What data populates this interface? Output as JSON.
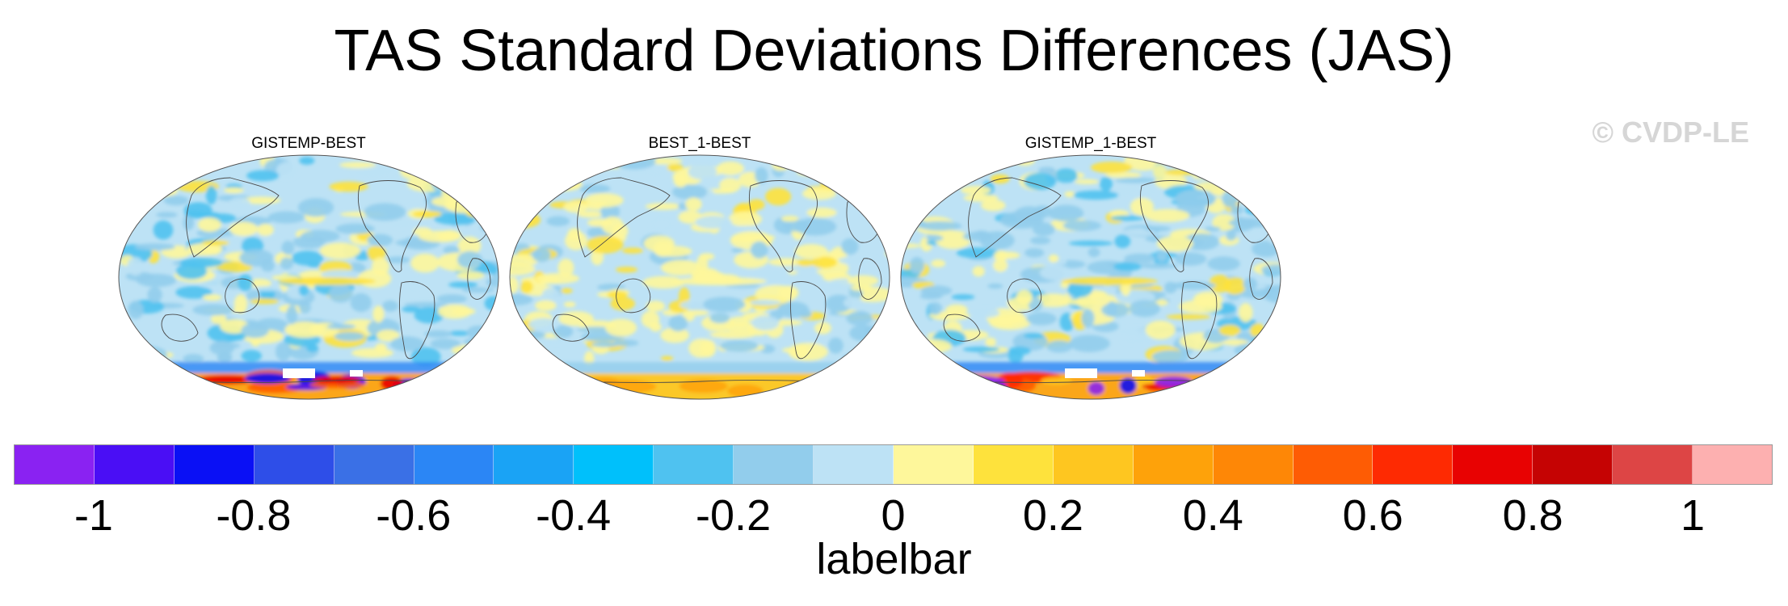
{
  "title": "TAS Standard Deviations Differences (JAS)",
  "watermark": "© CVDP-LE",
  "panels": [
    {
      "title": "GISTEMP-BEST",
      "center": "pacific",
      "antarctic_anomaly": "strong",
      "seed": 11
    },
    {
      "title": "BEST_1-BEST",
      "center": "pacific",
      "antarctic_anomaly": "weak",
      "seed": 23
    },
    {
      "title": "GISTEMP_1-BEST",
      "center": "pacific",
      "antarctic_anomaly": "strong",
      "seed": 37
    }
  ],
  "colorbar": {
    "title": "labelbar",
    "colors": [
      "#8a22f2",
      "#4a0ef5",
      "#0a10f5",
      "#2e4ee8",
      "#3a70e6",
      "#2b86f5",
      "#1aa3f5",
      "#00c0fb",
      "#4fc2f0",
      "#92cdec",
      "#bde2f5",
      "#fef79b",
      "#fee23c",
      "#fec620",
      "#fea20a",
      "#fe8706",
      "#fe5c04",
      "#fe2a02",
      "#e80202",
      "#c50303",
      "#dd4545",
      "#fdb0b0"
    ],
    "boundaries": [
      -1.1,
      -1,
      -0.9,
      -0.8,
      -0.7,
      -0.6,
      -0.5,
      -0.4,
      -0.3,
      -0.2,
      -0.1,
      0,
      0.1,
      0.2,
      0.3,
      0.4,
      0.5,
      0.6,
      0.7,
      0.8,
      0.9,
      1,
      1.1
    ],
    "tick_labels": [
      "-1",
      "-0.8",
      "-0.6",
      "-0.4",
      "-0.2",
      "0",
      "0.2",
      "0.4",
      "0.6",
      "0.8",
      "1"
    ],
    "tick_values": [
      -1,
      -0.8,
      -0.6,
      -0.4,
      -0.2,
      0,
      0.2,
      0.4,
      0.6,
      0.8,
      1
    ]
  }
}
